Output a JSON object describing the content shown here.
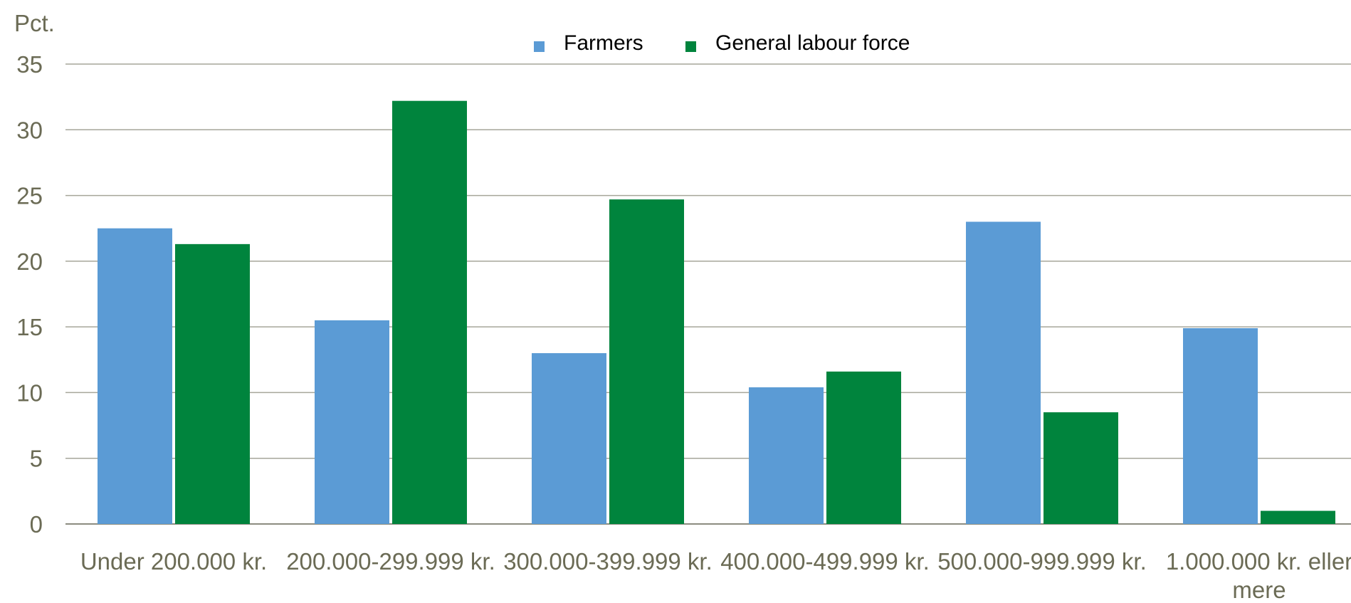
{
  "chart_data": {
    "type": "bar",
    "ylabel": "Pct.",
    "ylim": [
      0,
      35
    ],
    "yticks": [
      0,
      5,
      10,
      15,
      20,
      25,
      30,
      35
    ],
    "grid": true,
    "legend_position": "top-center",
    "categories": [
      [
        "Under 200.000 kr."
      ],
      [
        "200.000-299.999 kr."
      ],
      [
        "300.000-399.999 kr."
      ],
      [
        "400.000-499.999 kr."
      ],
      [
        "500.000-999.999 kr."
      ],
      [
        "1.000.000 kr. eller",
        "mere"
      ]
    ],
    "series": [
      {
        "name": "Farmers",
        "color": "#5b9bd5",
        "values": [
          22.5,
          15.5,
          13.0,
          10.4,
          23.0,
          14.9
        ]
      },
      {
        "name": "General labour force",
        "color": "#00843d",
        "values": [
          21.3,
          32.2,
          24.7,
          11.6,
          8.5,
          1.0
        ]
      }
    ]
  }
}
